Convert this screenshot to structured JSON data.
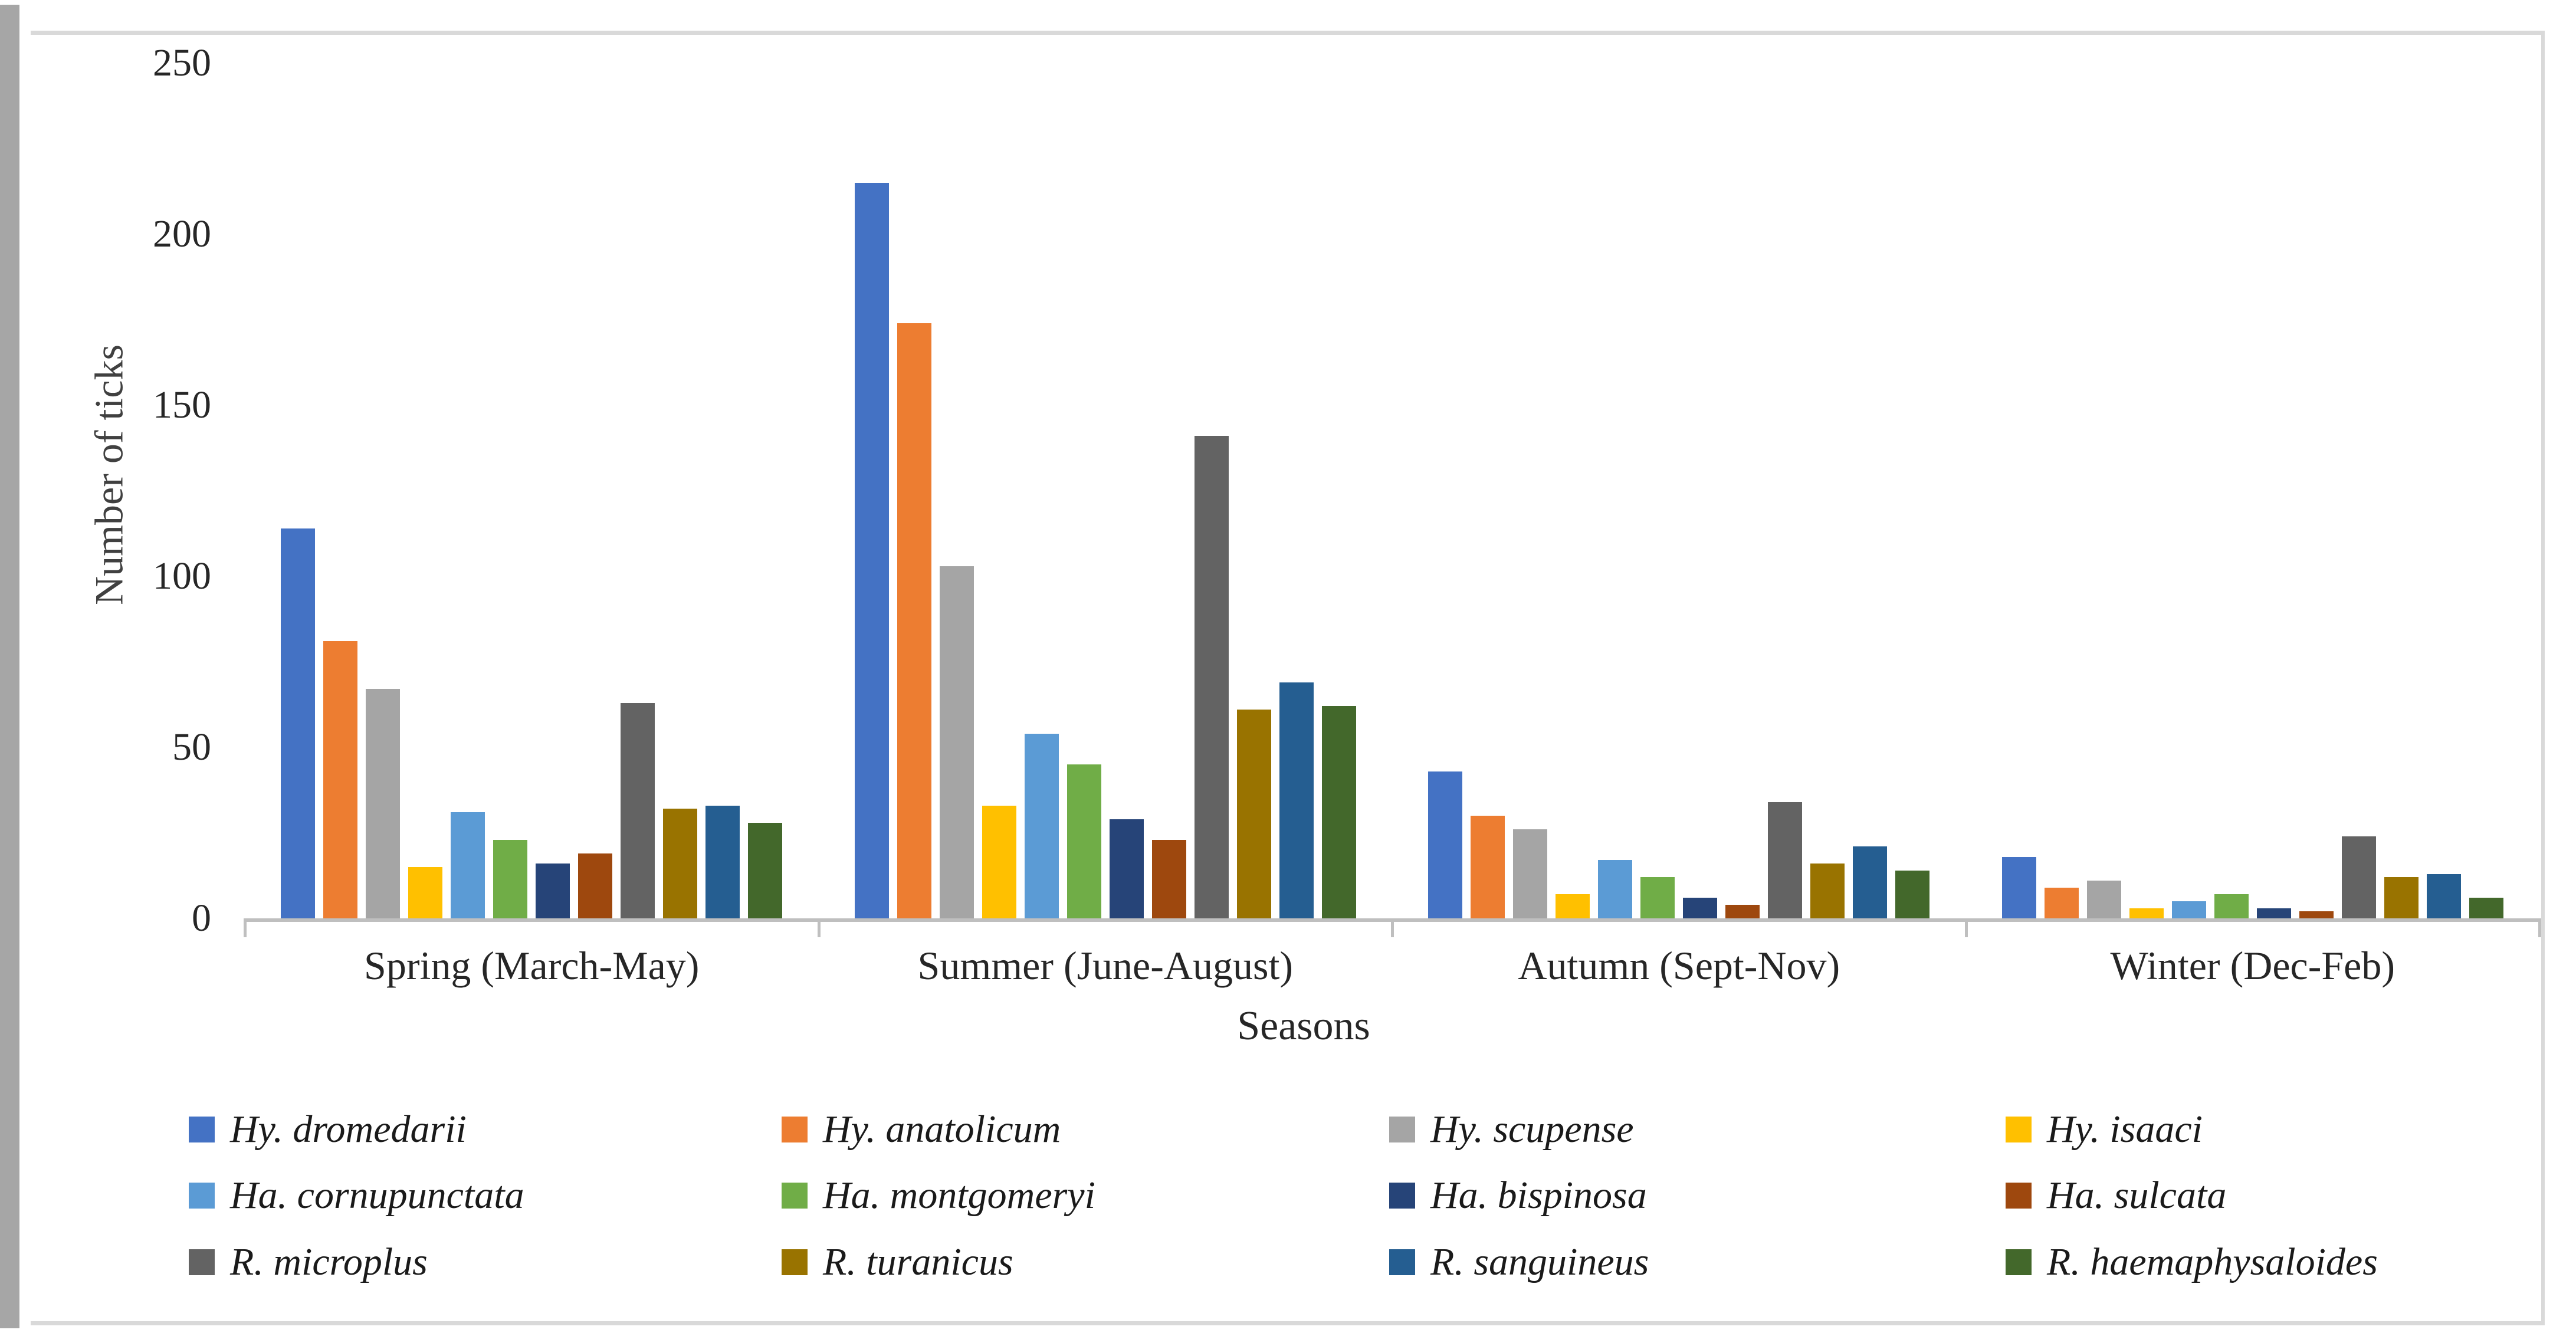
{
  "figure": {
    "background": "#ffffff",
    "frame_color": "#d9d9d9",
    "left_strip_color": "#a6a6a6",
    "axis_color": "#bfbfbf"
  },
  "chart_data": {
    "type": "bar",
    "title": "",
    "xlabel": "Seasons",
    "ylabel": "Number of ticks",
    "ylim": [
      0,
      250
    ],
    "y_ticks": [
      0,
      50,
      100,
      150,
      200,
      250
    ],
    "grid": false,
    "legend_position": "bottom",
    "categories": [
      "Spring (March-May)",
      "Summer (June-August)",
      "Autumn (Sept-Nov)",
      "Winter (Dec-Feb)"
    ],
    "series": [
      {
        "name": "Hy. dromedarii",
        "color": "#4472C4",
        "values": [
          114,
          215,
          43,
          18
        ]
      },
      {
        "name": "Hy. anatolicum",
        "color": "#ED7D31",
        "values": [
          81,
          174,
          30,
          9
        ]
      },
      {
        "name": "Hy. scupense",
        "color": "#A5A5A5",
        "values": [
          67,
          103,
          26,
          11
        ]
      },
      {
        "name": "Hy. isaaci",
        "color": "#FFC000",
        "values": [
          15,
          33,
          7,
          3
        ]
      },
      {
        "name": "Ha. cornupunctata",
        "color": "#5B9BD5",
        "values": [
          31,
          54,
          17,
          5
        ]
      },
      {
        "name": "Ha. montgomeryi",
        "color": "#70AD47",
        "values": [
          23,
          45,
          12,
          7
        ]
      },
      {
        "name": "Ha. bispinosa",
        "color": "#264478",
        "values": [
          16,
          29,
          6,
          3
        ]
      },
      {
        "name": "Ha. sulcata",
        "color": "#9E480E",
        "values": [
          19,
          23,
          4,
          2
        ]
      },
      {
        "name": "R. microplus",
        "color": "#636363",
        "values": [
          63,
          141,
          34,
          24
        ]
      },
      {
        "name": "R. turanicus",
        "color": "#997300",
        "values": [
          32,
          61,
          16,
          12
        ]
      },
      {
        "name": "R. sanguineus",
        "color": "#255E91",
        "values": [
          33,
          69,
          21,
          13
        ]
      },
      {
        "name": "R. haemaphysaloides",
        "color": "#43682B",
        "values": [
          28,
          62,
          14,
          6
        ]
      }
    ]
  }
}
